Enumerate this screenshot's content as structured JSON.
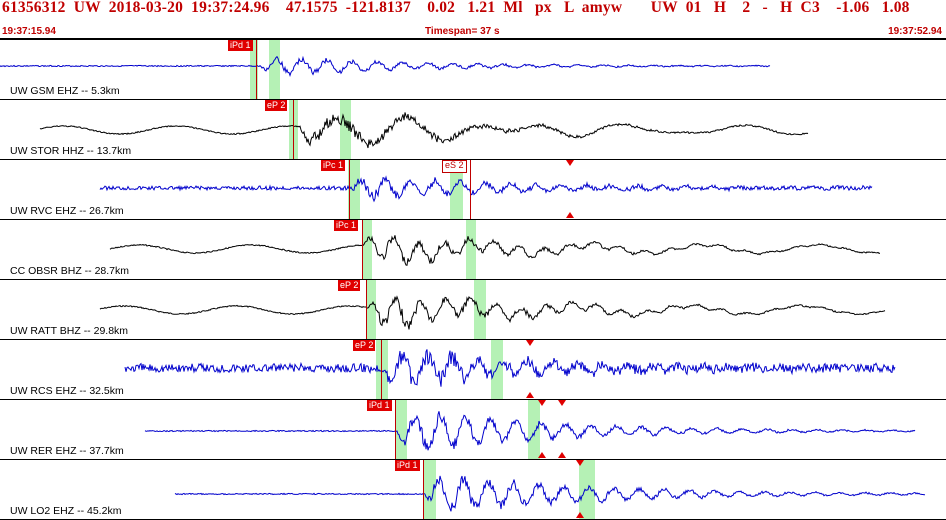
{
  "header": {
    "title": "61356312  UW  2018-03-20  19:37:24.96    47.1575  -121.8137    0.02   1.21  Ml   px   L  amyw       UW  01   H    2   -   H  C3    -1.06   1.08",
    "start_time": "19:37:15.94",
    "timespan": "Timespan=  37 s",
    "end_time": "19:37:52.94"
  },
  "colors": {
    "title_red": "#c00000",
    "pick_red": "#e00000",
    "blue_trace": "#0000cc",
    "black_trace": "#000000",
    "window_green": "#78e678"
  },
  "traces": [
    {
      "label": "UW GSM EHZ -- 5.3km",
      "color": "blue",
      "picks": [
        {
          "text": "iPd 1",
          "style": "solid"
        }
      ],
      "markers": []
    },
    {
      "label": "UW STOR HHZ -- 13.7km",
      "color": "black",
      "picks": [
        {
          "text": "eP 2",
          "style": "solid"
        }
      ],
      "markers": []
    },
    {
      "label": "UW RVC EHZ -- 26.7km",
      "color": "blue",
      "picks": [
        {
          "text": "iPc 1",
          "style": "solid"
        },
        {
          "text": "eS 2",
          "style": "outline"
        }
      ],
      "markers": [
        "down",
        "up"
      ]
    },
    {
      "label": "CC OBSR BHZ -- 28.7km",
      "color": "black",
      "picks": [
        {
          "text": "iPc 1",
          "style": "solid"
        }
      ],
      "markers": []
    },
    {
      "label": "UW RATT BHZ -- 29.8km",
      "color": "black",
      "picks": [
        {
          "text": "eP 2",
          "style": "solid"
        }
      ],
      "markers": []
    },
    {
      "label": "UW RCS EHZ -- 32.5km",
      "color": "blue",
      "picks": [
        {
          "text": "eP 2",
          "style": "solid"
        }
      ],
      "markers": [
        "down",
        "up"
      ]
    },
    {
      "label": "UW RER EHZ -- 37.7km",
      "color": "blue",
      "picks": [
        {
          "text": "iPd 1",
          "style": "solid"
        }
      ],
      "markers": [
        "down",
        "down",
        "up",
        "up"
      ]
    },
    {
      "label": "UW LO2 EHZ -- 45.2km",
      "color": "blue",
      "picks": [
        {
          "text": "iPd 1",
          "style": "solid"
        }
      ],
      "markers": [
        "down",
        "up"
      ]
    }
  ]
}
